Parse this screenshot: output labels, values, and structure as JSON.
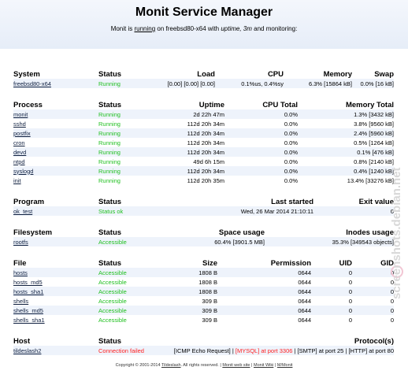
{
  "header": {
    "title": "Monit Service Manager",
    "subtitle": [
      "Monit is ",
      "running",
      " on freebsd80-x64 with ",
      "uptime, 3m",
      " and monitoring:"
    ]
  },
  "sections": [
    {
      "headers": [
        "System",
        "Status",
        "Load",
        "CPU",
        "Memory",
        "Swap"
      ],
      "status_color": "#22c022",
      "rows": [
        [
          "freebsd80-x64",
          "Running",
          "[0.00] [0.00] [0.00]",
          "0.1%us, 0.4%sy",
          "6.3% [15864 kB]",
          "0.0% [16 kB]"
        ]
      ]
    },
    {
      "headers": [
        "Process",
        "Status",
        "Uptime",
        "CPU Total",
        "Memory Total"
      ],
      "status_color": "#22c022",
      "rows": [
        [
          "monit",
          "Running",
          "2d 22h 47m",
          "0.0%",
          "1.3% [3432 kB]"
        ],
        [
          "sshd",
          "Running",
          "112d 20h 34m",
          "0.0%",
          "3.8% [9560 kB]"
        ],
        [
          "postfix",
          "Running",
          "112d 20h 34m",
          "0.0%",
          "2.4% [5960 kB]"
        ],
        [
          "cron",
          "Running",
          "112d 20h 34m",
          "0.0%",
          "0.5% [1264 kB]"
        ],
        [
          "devd",
          "Running",
          "112d 20h 34m",
          "0.0%",
          "0.1% [476 kB]"
        ],
        [
          "ntpd",
          "Running",
          "49d 6h 15m",
          "0.0%",
          "0.8% [2140 kB]"
        ],
        [
          "syslogd",
          "Running",
          "112d 20h 34m",
          "0.0%",
          "0.4% [1240 kB]"
        ],
        [
          "init",
          "Running",
          "112d 20h 35m",
          "0.0%",
          "13.4% [33276 kB]"
        ]
      ]
    },
    {
      "headers": [
        "Program",
        "Status",
        "Last started",
        "Exit value"
      ],
      "status_color": "#22c022",
      "rows": [
        [
          "ok_test",
          "Status ok",
          "Wed, 26 Mar 2014 21:10:11",
          "0"
        ]
      ]
    },
    {
      "headers": [
        "Filesystem",
        "Status",
        "Space usage",
        "Inodes usage"
      ],
      "status_color": "#22c022",
      "rows": [
        [
          "rootfs",
          "Accessible",
          "60.4% [3901.5 MB]",
          "35.3% [349543 objects]"
        ]
      ]
    },
    {
      "headers": [
        "File",
        "Status",
        "Size",
        "Permission",
        "UID",
        "GID"
      ],
      "status_color": "#22c022",
      "rows": [
        [
          "hosts",
          "Accessible",
          "1808 B",
          "0644",
          "0",
          "0"
        ],
        [
          "hosts_md5",
          "Accessible",
          "1808 B",
          "0644",
          "0",
          "0"
        ],
        [
          "hosts_sha1",
          "Accessible",
          "1808 B",
          "0644",
          "0",
          "0"
        ],
        [
          "shells",
          "Accessible",
          "309 B",
          "0644",
          "0",
          "0"
        ],
        [
          "shells_md5",
          "Accessible",
          "309 B",
          "0644",
          "0",
          "0"
        ],
        [
          "shells_sha1",
          "Accessible",
          "309 B",
          "0644",
          "0",
          "0"
        ]
      ]
    },
    {
      "headers": [
        "Host",
        "Status",
        "Protocol(s)"
      ],
      "status_color": "#ff2020",
      "rows": [
        [
          "tildeslash2",
          "Connection failed",
          [
            {
              "text": "[ICMP Echo Request]",
              "color": "#000000"
            },
            {
              "text": " | ",
              "color": "#000000"
            },
            {
              "text": "[MYSQL] at port 3306",
              "color": "#ff2020"
            },
            {
              "text": " | ",
              "color": "#000000"
            },
            {
              "text": "[SMTP] at port 25",
              "color": "#000000"
            },
            {
              "text": " | ",
              "color": "#000000"
            },
            {
              "text": "[HTTP] at port 80",
              "color": "#000000"
            }
          ]
        ]
      ]
    }
  ],
  "footer": [
    "Copyright © 2001-2014 ",
    "Tildeslash",
    ". All rights reserved. ",
    " | ",
    "Monit web site",
    " | ",
    "Monit Wiki",
    " | ",
    "M/Monit"
  ],
  "watermark": "screenshots.debian.net"
}
